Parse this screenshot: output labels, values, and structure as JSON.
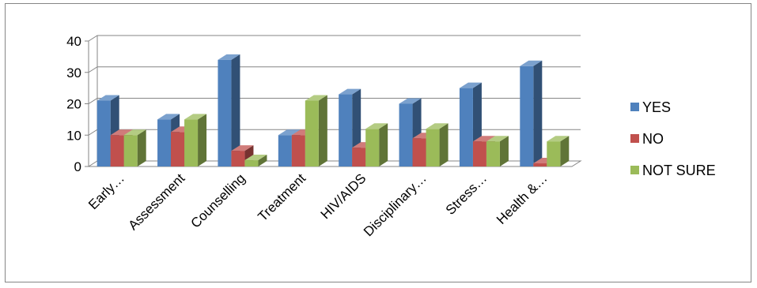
{
  "chart_data": {
    "type": "bar",
    "categories": [
      "Early…",
      "Assessment",
      "Counselling",
      "Treatment",
      "HIV/AIDS",
      "Disciplinary…",
      "Stress…",
      "Health &…"
    ],
    "series": [
      {
        "name": "YES",
        "color": "#4F81BD",
        "values": [
          21,
          15,
          34,
          10,
          23,
          20,
          25,
          32
        ]
      },
      {
        "name": "NO",
        "color": "#C0504D",
        "values": [
          10,
          11,
          5,
          10,
          6,
          9,
          8,
          1
        ]
      },
      {
        "name": "NOT SURE",
        "color": "#9BBB59",
        "values": [
          10,
          15,
          2,
          21,
          12,
          12,
          8,
          8
        ]
      }
    ],
    "ylim": [
      0,
      40
    ],
    "yticks": [
      0,
      10,
      20,
      30,
      40
    ],
    "ytick_labels": [
      "0",
      "10",
      "20",
      "30",
      "40"
    ],
    "grid": true,
    "legend_position": "right",
    "style": "3d-clustered-column"
  }
}
